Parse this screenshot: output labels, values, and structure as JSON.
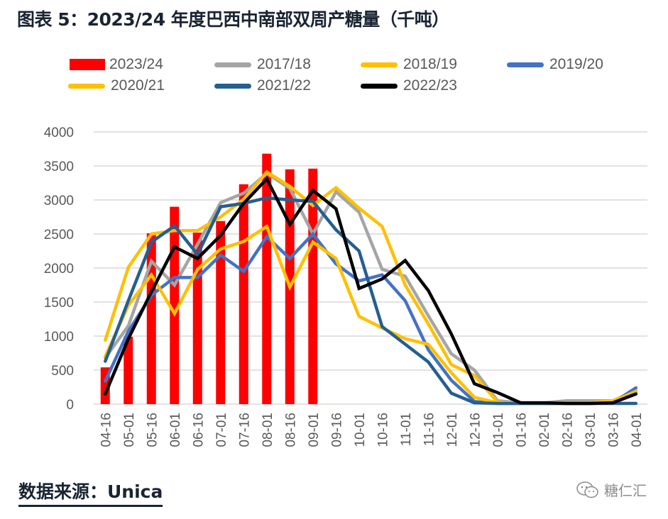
{
  "title": "图表 5：2023/24 年度巴西中南部双周产糖量（千吨）",
  "footer": {
    "source": "数据来源：Unica",
    "watermark": "糖仁汇",
    "watermark_icon": "wechat-icon"
  },
  "chart_data": {
    "type": "bar+line",
    "title": "图表 5：2023/24 年度巴西中南部双周产糖量（千吨）",
    "xlabel": "",
    "ylabel": "",
    "ylim": [
      0,
      4000
    ],
    "yticks": [
      "0",
      "500",
      "1000",
      "1500",
      "2000",
      "2500",
      "3000",
      "3500",
      "4000"
    ],
    "ytick_values": [
      0,
      500,
      1000,
      1500,
      2000,
      2500,
      3000,
      3500,
      4000
    ],
    "grid": "horizontal",
    "legend_position": "top",
    "categories": [
      "04-16",
      "05-01",
      "05-16",
      "06-01",
      "06-16",
      "07-01",
      "07-16",
      "08-01",
      "08-16",
      "09-01",
      "09-16",
      "10-01",
      "10-16",
      "11-01",
      "11-16",
      "12-01",
      "12-16",
      "01-01",
      "01-16",
      "02-01",
      "02-16",
      "03-01",
      "03-16",
      "04-01"
    ],
    "bar_series": {
      "name": "2023/24",
      "color": "#FF0000",
      "values": [
        540,
        990,
        2510,
        2900,
        2520,
        2690,
        3230,
        3680,
        3450,
        3460
      ]
    },
    "series": [
      {
        "name": "2017/18",
        "color": "#A5A5A5",
        "values": [
          680,
          1150,
          2100,
          1750,
          2350,
          2960,
          3100,
          3390,
          3170,
          2500,
          3120,
          2820,
          1980,
          1880,
          1300,
          740,
          500,
          50,
          20,
          20,
          50,
          50,
          50,
          180
        ]
      },
      {
        "name": "2018/19",
        "color": "#FFC000",
        "values": [
          940,
          2010,
          2500,
          2550,
          2550,
          2750,
          3010,
          3410,
          3200,
          2920,
          3180,
          2880,
          2610,
          1750,
          1180,
          580,
          420,
          30,
          10,
          10,
          20,
          20,
          50,
          200
        ]
      },
      {
        "name": "2019/20",
        "color": "#4472C4",
        "values": [
          340,
          1070,
          1600,
          1860,
          1860,
          2190,
          1950,
          2460,
          2140,
          2500,
          2060,
          1810,
          1900,
          1520,
          800,
          350,
          40,
          10,
          10,
          10,
          10,
          10,
          20,
          240
        ]
      },
      {
        "name": "2020/21",
        "color": "#FFC000",
        "values": [
          700,
          1450,
          1900,
          1330,
          1980,
          2280,
          2390,
          2610,
          1720,
          2380,
          2140,
          1290,
          1120,
          960,
          880,
          460,
          100,
          20,
          10,
          10,
          10,
          20,
          40,
          190
        ]
      },
      {
        "name": "2021/22",
        "color": "#255E91",
        "values": [
          630,
          1520,
          2380,
          2620,
          2200,
          2900,
          2950,
          3030,
          3000,
          2980,
          2560,
          2250,
          1140,
          880,
          620,
          160,
          20,
          10,
          10,
          10,
          10,
          10,
          10,
          10
        ]
      },
      {
        "name": "2022/23",
        "color": "#000000",
        "values": [
          150,
          960,
          1650,
          2310,
          2140,
          2480,
          2950,
          3310,
          2640,
          3140,
          2870,
          1700,
          1840,
          2110,
          1670,
          1030,
          300,
          170,
          20,
          20,
          10,
          10,
          20,
          150
        ]
      }
    ]
  }
}
